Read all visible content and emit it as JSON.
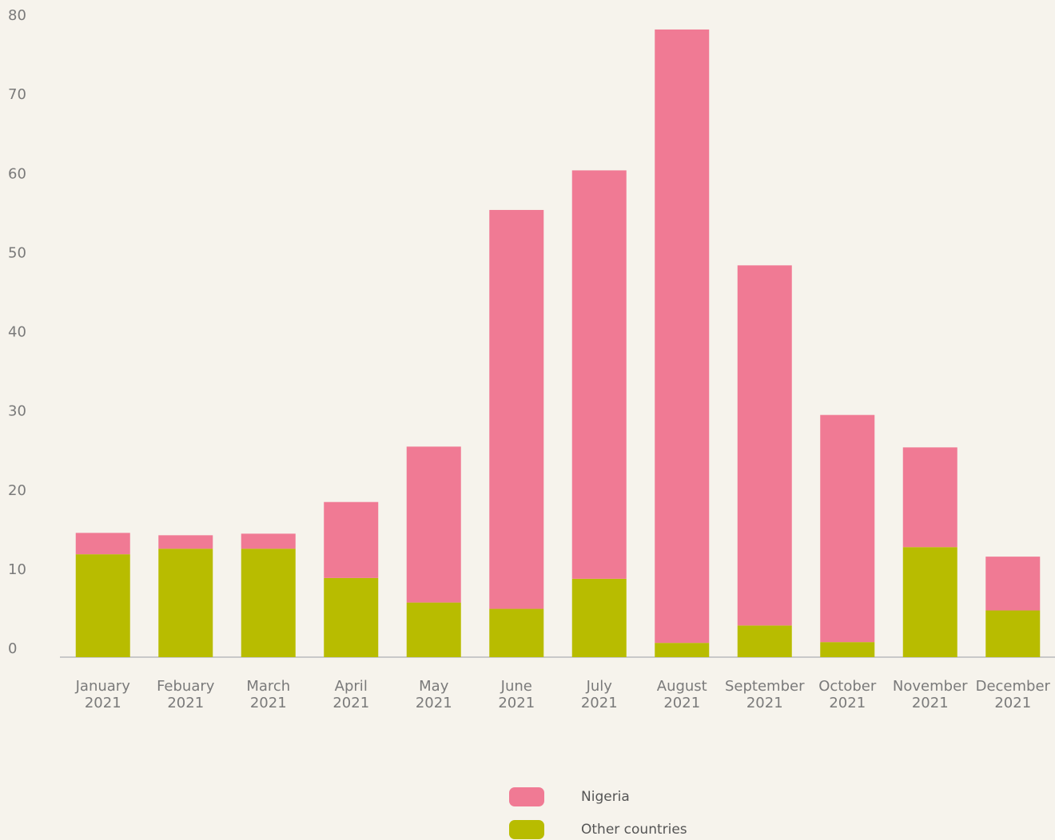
{
  "chart_data": {
    "type": "stacked_bar",
    "categories": [
      "January 2021",
      "Febuary 2021",
      "March 2021",
      "April 2021",
      "May 2021",
      "June 2021",
      "July 2021",
      "August 2021",
      "September 2021",
      "October 2021",
      "November 2021",
      "December 2021"
    ],
    "series": [
      {
        "name": "Nigeria",
        "color": "#f07a94",
        "values": [
          2.7,
          1.7,
          1.9,
          9.6,
          19.7,
          50.4,
          51.6,
          77.5,
          45.5,
          28.7,
          12.6,
          6.8
        ]
      },
      {
        "name": "Other countries",
        "color": "#b8bc00",
        "values": [
          13,
          13.7,
          13.7,
          10,
          6.9,
          6.1,
          9.9,
          1.8,
          4,
          1.9,
          13.9,
          5.9
        ]
      }
    ],
    "ylim": [
      0,
      80
    ],
    "yticks": [
      0,
      10,
      20,
      30,
      40,
      50,
      60,
      70,
      80
    ],
    "grid": false,
    "legend": "bottom"
  }
}
